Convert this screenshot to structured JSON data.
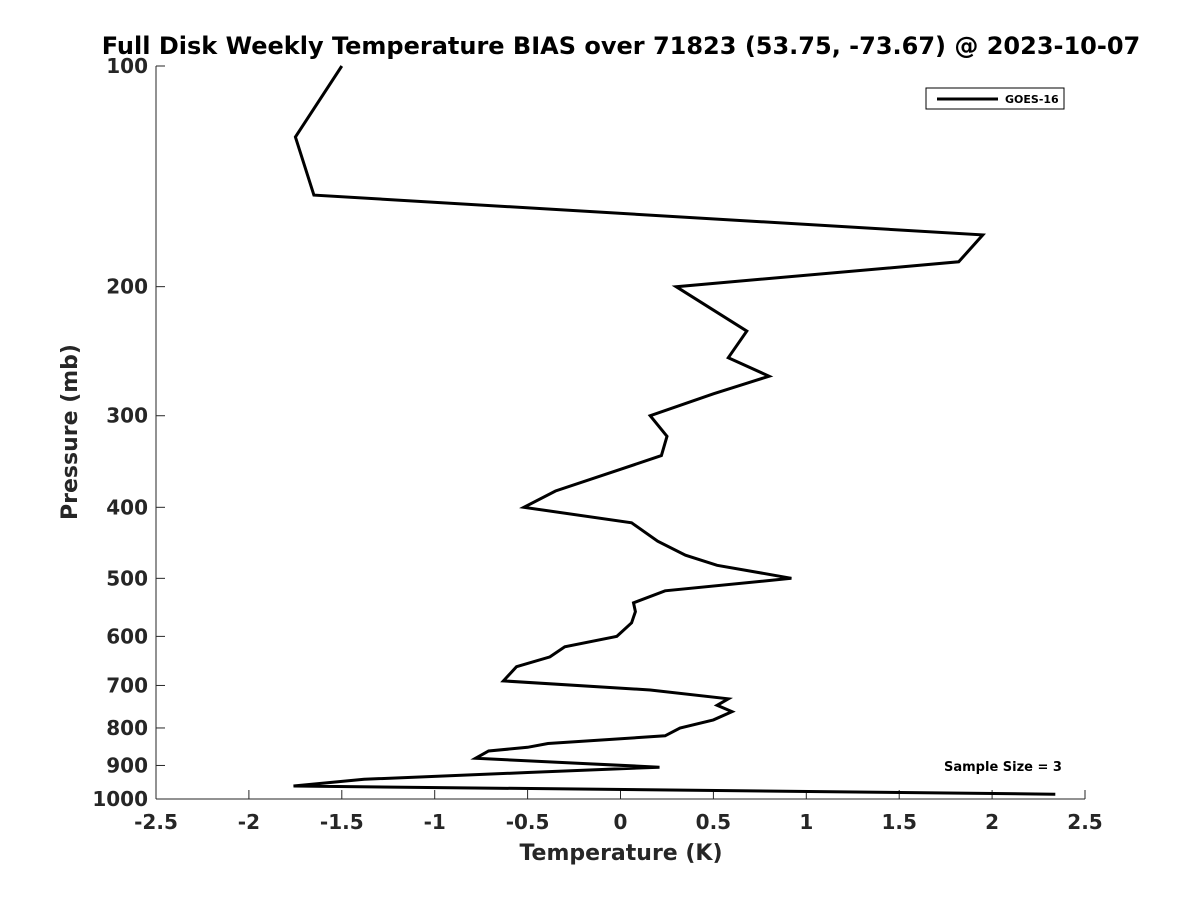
{
  "chart_data": {
    "type": "line",
    "title": "Full Disk Weekly Temperature BIAS over 71823 (53.75, -73.67) @ 2023-10-07",
    "xlabel": "Temperature (K)",
    "ylabel": "Pressure (mb)",
    "xlim": [
      -2.5,
      2.5
    ],
    "ylim": [
      1000,
      100
    ],
    "y_scale": "log",
    "x_ticks": [
      "-2.5",
      "-2",
      "-1.5",
      "-1",
      "-0.5",
      "0",
      "0.5",
      "1",
      "1.5",
      "2",
      "2.5"
    ],
    "y_ticks": [
      "100",
      "200",
      "300",
      "400",
      "500",
      "600",
      "700",
      "800",
      "900",
      "1000"
    ],
    "grid": false,
    "legend_position": "top-right",
    "line_color": "#000000",
    "series": [
      {
        "name": "GOES-16",
        "points": [
          {
            "x": -1.5,
            "y": 100
          },
          {
            "x": -1.75,
            "y": 125
          },
          {
            "x": -1.65,
            "y": 150
          },
          {
            "x": 1.95,
            "y": 170
          },
          {
            "x": 1.82,
            "y": 185
          },
          {
            "x": 0.3,
            "y": 200
          },
          {
            "x": 0.68,
            "y": 230
          },
          {
            "x": 0.58,
            "y": 250
          },
          {
            "x": 0.8,
            "y": 265
          },
          {
            "x": 0.5,
            "y": 280
          },
          {
            "x": 0.16,
            "y": 300
          },
          {
            "x": 0.25,
            "y": 320
          },
          {
            "x": 0.22,
            "y": 340
          },
          {
            "x": 0.0,
            "y": 355
          },
          {
            "x": -0.35,
            "y": 380
          },
          {
            "x": -0.52,
            "y": 400
          },
          {
            "x": 0.06,
            "y": 420
          },
          {
            "x": 0.2,
            "y": 445
          },
          {
            "x": 0.35,
            "y": 465
          },
          {
            "x": 0.52,
            "y": 480
          },
          {
            "x": 0.92,
            "y": 500
          },
          {
            "x": 0.24,
            "y": 520
          },
          {
            "x": 0.07,
            "y": 540
          },
          {
            "x": 0.08,
            "y": 555
          },
          {
            "x": 0.06,
            "y": 575
          },
          {
            "x": -0.02,
            "y": 600
          },
          {
            "x": -0.3,
            "y": 620
          },
          {
            "x": -0.38,
            "y": 640
          },
          {
            "x": -0.56,
            "y": 660
          },
          {
            "x": -0.63,
            "y": 690
          },
          {
            "x": 0.16,
            "y": 710
          },
          {
            "x": 0.58,
            "y": 730
          },
          {
            "x": 0.52,
            "y": 745
          },
          {
            "x": 0.6,
            "y": 760
          },
          {
            "x": 0.5,
            "y": 780
          },
          {
            "x": 0.32,
            "y": 800
          },
          {
            "x": 0.24,
            "y": 820
          },
          {
            "x": -0.39,
            "y": 840
          },
          {
            "x": -0.5,
            "y": 850
          },
          {
            "x": -0.71,
            "y": 860
          },
          {
            "x": -0.78,
            "y": 880
          },
          {
            "x": 0.21,
            "y": 905
          },
          {
            "x": -0.5,
            "y": 920
          },
          {
            "x": -1.38,
            "y": 940
          },
          {
            "x": -1.76,
            "y": 960
          },
          {
            "x": 2.34,
            "y": 985
          }
        ]
      }
    ],
    "annotation": "Sample Size = 3"
  }
}
